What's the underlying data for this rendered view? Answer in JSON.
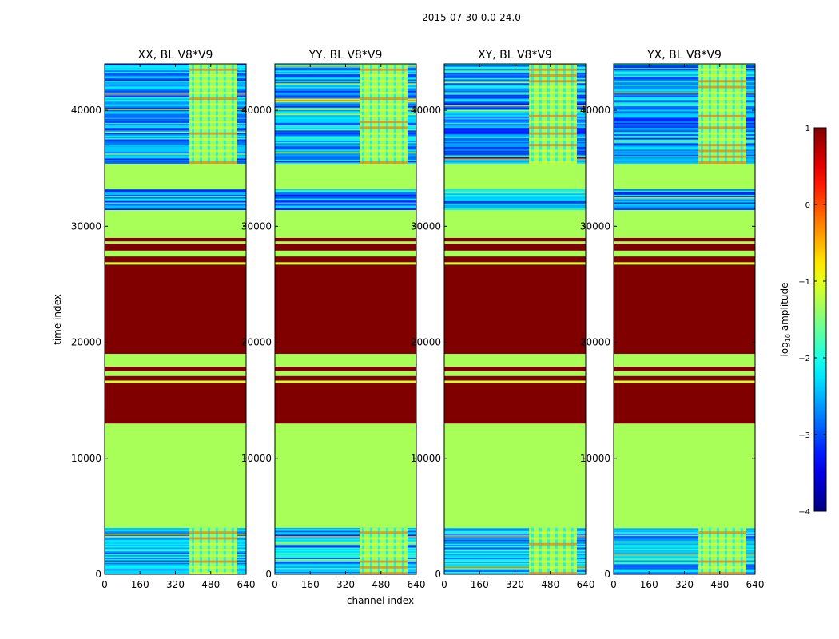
{
  "figure": {
    "suptitle": "2015-07-30 0.0-24.0",
    "xlabel": "channel index",
    "ylabel": "time index"
  },
  "colorbar": {
    "label_prefix": "log",
    "label_sub": "10",
    "label_suffix": " amplitude",
    "range": [
      -4,
      1
    ],
    "ticks": [
      -4,
      -3,
      -2,
      -1,
      0,
      1
    ],
    "tick_labels": [
      "−4",
      "−3",
      "−2",
      "−1",
      "0",
      "1"
    ],
    "colormap": "jet"
  },
  "chart_data": {
    "type": "heatmap",
    "title": "2015-07-30 0.0-24.0",
    "xlabel": "channel index",
    "ylabel": "time index",
    "xlim": [
      0,
      640
    ],
    "ylim": [
      0,
      44000
    ],
    "xticks": [
      0,
      160,
      320,
      480,
      640
    ],
    "yticks": [
      0,
      10000,
      20000,
      30000,
      40000
    ],
    "value_label": "log10 amplitude",
    "value_range": [
      -4,
      1
    ],
    "panels": [
      {
        "title": "XX, BL V8*V9",
        "pol": "XX"
      },
      {
        "title": "YY, BL V8*V9",
        "pol": "YY"
      },
      {
        "title": "XY, BL V8*V9",
        "pol": "XY"
      },
      {
        "title": "YX, BL V8*V9",
        "pol": "YX"
      }
    ],
    "bands": [
      {
        "t0": 0,
        "t1": 4000,
        "value": -2.5,
        "kind": "noisy"
      },
      {
        "t0": 4000,
        "t1": 13000,
        "value": -1.3
      },
      {
        "t0": 13000,
        "t1": 13600,
        "value": 1.0
      },
      {
        "t0": 13600,
        "t1": 16500,
        "value": 1.0
      },
      {
        "t0": 16500,
        "t1": 16700,
        "value": -1.1
      },
      {
        "t0": 16700,
        "t1": 17100,
        "value": 1.0
      },
      {
        "t0": 17100,
        "t1": 17500,
        "value": -1.3
      },
      {
        "t0": 17500,
        "t1": 17900,
        "value": 1.0
      },
      {
        "t0": 17900,
        "t1": 19000,
        "value": -1.3
      },
      {
        "t0": 19000,
        "t1": 26700,
        "value": 1.0
      },
      {
        "t0": 26700,
        "t1": 26900,
        "value": -1.1
      },
      {
        "t0": 26900,
        "t1": 27400,
        "value": 1.0
      },
      {
        "t0": 27400,
        "t1": 27900,
        "value": -1.3
      },
      {
        "t0": 27900,
        "t1": 28500,
        "value": 1.0
      },
      {
        "t0": 28500,
        "t1": 28700,
        "value": -1.3
      },
      {
        "t0": 28700,
        "t1": 29000,
        "value": 1.0
      },
      {
        "t0": 29000,
        "t1": 31400,
        "value": -1.3
      },
      {
        "t0": 31400,
        "t1": 33200,
        "value": -2.6,
        "kind": "noisy"
      },
      {
        "t0": 33200,
        "t1": 35400,
        "value": -1.3
      },
      {
        "t0": 35400,
        "t1": 44000,
        "value": -2.6,
        "kind": "noisy"
      }
    ],
    "rfi_columns": [
      {
        "c0": 384,
        "c1": 600,
        "t_ranges": [
          [
            0,
            4000
          ],
          [
            35400,
            44000
          ]
        ]
      }
    ]
  }
}
